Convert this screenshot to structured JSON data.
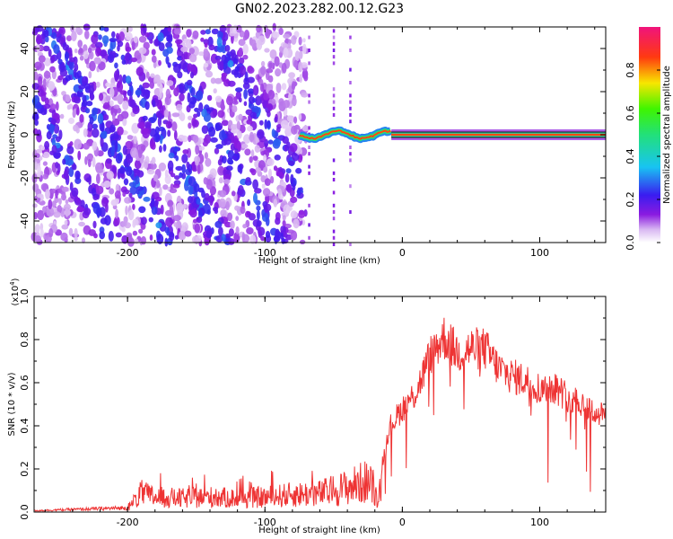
{
  "title": "GN02.2023.282.00.12.G23",
  "chart_data": [
    {
      "type": "heatmap",
      "xlabel": "Height of straight line (km)",
      "ylabel": "Frequency (Hz)",
      "xlim": [
        -268,
        148
      ],
      "ylim": [
        -50,
        50
      ],
      "xticks": [
        -200,
        -100,
        0,
        100
      ],
      "yticks": [
        -40,
        -20,
        0,
        20,
        40
      ],
      "colorbar": {
        "label": "Normalized spectral amplitude",
        "range": [
          0.0,
          1.0
        ],
        "ticks": [
          "0.0",
          "0.2",
          "0.4",
          "0.6",
          "0.8"
        ],
        "colormap": "white-purple-blue-cyan-green-yellow-red-magenta"
      },
      "features": {
        "scattered_band_region_x": [
          -268,
          -70
        ],
        "narrow_line_frequency_hz": 0,
        "narrow_line_x_range": [
          -75,
          148
        ],
        "narrow_line_peak_amplitude": 0.85
      }
    },
    {
      "type": "line",
      "xlabel": "Height of straight line (km)",
      "ylabel": "SNR (10 * v/v)",
      "yscale_note": "(x10",
      "yscale_exp": "4",
      "xlim": [
        -268,
        148
      ],
      "ylim": [
        0.0,
        1.0
      ],
      "xticks": [
        -200,
        -100,
        0,
        100
      ],
      "yticks": [
        "0.0",
        "0.2",
        "0.4",
        "0.6",
        "0.8",
        "1.0"
      ],
      "color": "#ee3333",
      "envelope_points": [
        [
          -268,
          0.01
        ],
        [
          -200,
          0.03
        ],
        [
          -190,
          0.15
        ],
        [
          -180,
          0.12
        ],
        [
          -160,
          0.11
        ],
        [
          -140,
          0.12
        ],
        [
          -120,
          0.11
        ],
        [
          -100,
          0.12
        ],
        [
          -80,
          0.14
        ],
        [
          -60,
          0.15
        ],
        [
          -40,
          0.2
        ],
        [
          -25,
          0.25
        ],
        [
          -18,
          0.12
        ],
        [
          -10,
          0.42
        ],
        [
          0,
          0.52
        ],
        [
          10,
          0.6
        ],
        [
          20,
          0.78
        ],
        [
          30,
          0.88
        ],
        [
          40,
          0.8
        ],
        [
          50,
          0.82
        ],
        [
          60,
          0.82
        ],
        [
          70,
          0.72
        ],
        [
          80,
          0.68
        ],
        [
          90,
          0.66
        ],
        [
          100,
          0.62
        ],
        [
          110,
          0.63
        ],
        [
          120,
          0.58
        ],
        [
          130,
          0.55
        ],
        [
          140,
          0.5
        ],
        [
          148,
          0.48
        ]
      ]
    }
  ]
}
